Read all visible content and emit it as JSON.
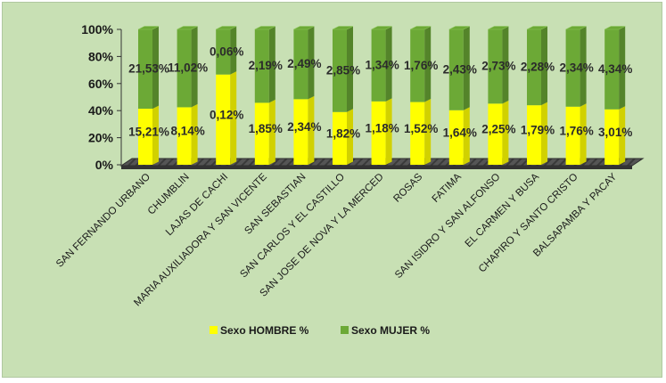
{
  "chart_data": {
    "type": "bar",
    "stacked": "percent",
    "categories": [
      "SAN FERNANDO URBANO",
      "CHUMBLIN",
      "LAJAS DE CACHI",
      "MARIA AUXILIADORA Y SAN VICENTE",
      "SAN SEBASTIAN",
      "SAN CARLOS Y EL CASTILLO",
      "SAN JOSE DE NOVA Y LA MERCED",
      "ROSAS",
      "FATIMA",
      "SAN ISIDRO Y SAN ALFONSO",
      "EL CARMEN  Y BUSA",
      "CHAPIRO Y SANTO CRISTO",
      "BALSAPAMBA Y PACAY"
    ],
    "series": [
      {
        "name": "Sexo HOMBRE %",
        "color": "#ffff00",
        "values": [
          15.21,
          8.14,
          0.12,
          1.85,
          2.34,
          1.82,
          1.18,
          1.52,
          1.64,
          2.25,
          1.79,
          1.76,
          3.01
        ],
        "labels": [
          "15,21%",
          "8,14%",
          "0,12%",
          "1,85%",
          "2,34%",
          "1,82%",
          "1,18%",
          "1,52%",
          "1,64%",
          "2,25%",
          "1,79%",
          "1,76%",
          "3,01%"
        ]
      },
      {
        "name": "Sexo MUJER  %",
        "color": "#6ca936",
        "values": [
          21.53,
          11.02,
          0.06,
          2.19,
          2.49,
          2.85,
          1.34,
          1.76,
          2.43,
          2.73,
          2.28,
          2.34,
          4.34
        ],
        "labels": [
          "21,53%",
          "11,02%",
          "0,06%",
          "2,19%",
          "2,49%",
          "2,85%",
          "1,34%",
          "1,76%",
          "2,43%",
          "2,73%",
          "2,28%",
          "2,34%",
          "4,34%"
        ]
      }
    ],
    "yticks": [
      "0%",
      "20%",
      "40%",
      "60%",
      "80%",
      "100%"
    ],
    "ylim": [
      0,
      100
    ],
    "legend": "bottom",
    "grid": false,
    "floor_color": "#4d4d4d"
  }
}
